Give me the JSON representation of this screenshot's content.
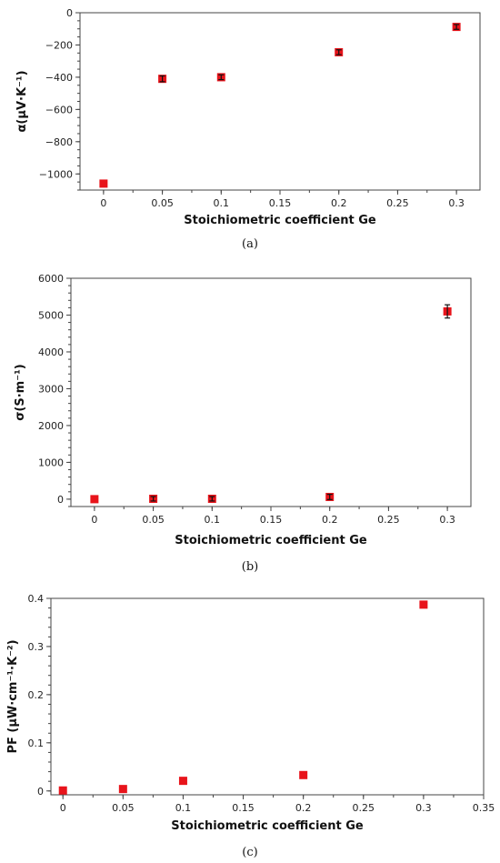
{
  "chart_data": [
    {
      "type": "scatter",
      "ylabel": "α(μV·K⁻¹)",
      "xlabel": "Stoichiometric coefficient Ge",
      "caption": "(a)",
      "xlim": [
        -0.02,
        0.32
      ],
      "ylim": [
        -1100,
        0
      ],
      "x_ticks": [
        0,
        0.05,
        0.1,
        0.15,
        0.2,
        0.25,
        0.3
      ],
      "x_tick_labels": [
        "0",
        "0.05",
        "0.1",
        "0.15",
        "0.2",
        "0.25",
        "0.3"
      ],
      "y_ticks": [
        0,
        -200,
        -400,
        -600,
        -800,
        -1000
      ],
      "y_tick_labels": [
        "0",
        "−200",
        "−400",
        "−600",
        "−800",
        "−1000"
      ],
      "points": [
        {
          "x": 0,
          "y": -1060,
          "err": 0
        },
        {
          "x": 0.05,
          "y": -410,
          "err": 18
        },
        {
          "x": 0.1,
          "y": -400,
          "err": 15
        },
        {
          "x": 0.2,
          "y": -245,
          "err": 15
        },
        {
          "x": 0.3,
          "y": -88,
          "err": 15
        }
      ],
      "marker_color": "#e8141b",
      "grid": false
    },
    {
      "type": "scatter",
      "ylabel": "σ(S·m⁻¹)",
      "xlabel": "Stoichiometric coefficient Ge",
      "caption": "(b)",
      "xlim": [
        -0.02,
        0.32
      ],
      "ylim": [
        -200,
        6000
      ],
      "x_ticks": [
        0,
        0.05,
        0.1,
        0.15,
        0.2,
        0.25,
        0.3
      ],
      "x_tick_labels": [
        "0",
        "0.05",
        "0.1",
        "0.15",
        "0.2",
        "0.25",
        "0.3"
      ],
      "y_ticks": [
        0,
        1000,
        2000,
        3000,
        4000,
        5000,
        6000
      ],
      "y_tick_labels": [
        "0",
        "1000",
        "2000",
        "3000",
        "4000",
        "5000",
        "6000"
      ],
      "points": [
        {
          "x": 0,
          "y": 0,
          "err": 0
        },
        {
          "x": 0.05,
          "y": 10,
          "err": 60
        },
        {
          "x": 0.1,
          "y": 10,
          "err": 60
        },
        {
          "x": 0.2,
          "y": 60,
          "err": 70
        },
        {
          "x": 0.3,
          "y": 5100,
          "err": 180
        }
      ],
      "marker_color": "#e8141b",
      "grid": false
    },
    {
      "type": "scatter",
      "ylabel": "PF (μW·cm⁻¹·K⁻²)",
      "xlabel": "Stoichiometric coefficient Ge",
      "caption": "(c)",
      "xlim": [
        -0.01,
        0.35
      ],
      "ylim": [
        -0.008,
        0.4
      ],
      "x_ticks": [
        0,
        0.05,
        0.1,
        0.15,
        0.2,
        0.25,
        0.3,
        0.35
      ],
      "x_tick_labels": [
        "0",
        "0.05",
        "0.1",
        "0.15",
        "0.2",
        "0.25",
        "0.3",
        "0.35"
      ],
      "y_ticks": [
        0,
        0.1,
        0.2,
        0.3,
        0.4
      ],
      "y_tick_labels": [
        "0",
        "0.1",
        "0.2",
        "0.3",
        "0.4"
      ],
      "points": [
        {
          "x": 0,
          "y": 0.001,
          "err": 0
        },
        {
          "x": 0.05,
          "y": 0.004,
          "err": 0
        },
        {
          "x": 0.1,
          "y": 0.021,
          "err": 0
        },
        {
          "x": 0.2,
          "y": 0.033,
          "err": 0
        },
        {
          "x": 0.3,
          "y": 0.387,
          "err": 0
        }
      ],
      "marker_color": "#e8141b",
      "grid": false
    }
  ]
}
